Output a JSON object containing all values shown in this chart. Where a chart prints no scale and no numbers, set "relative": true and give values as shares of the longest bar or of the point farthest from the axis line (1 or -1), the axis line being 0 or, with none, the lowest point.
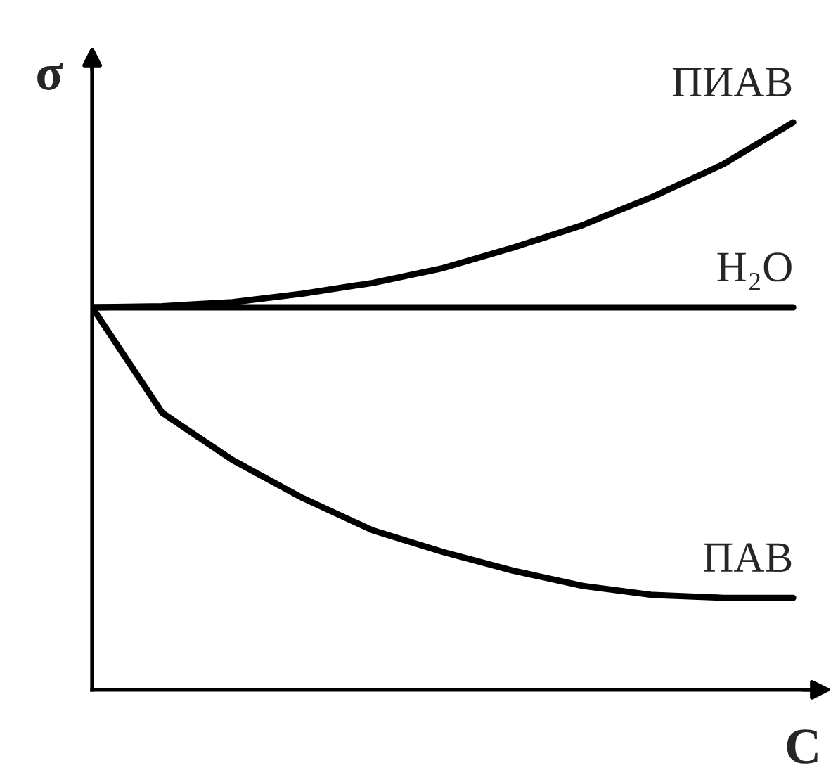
{
  "chart_data": {
    "type": "line",
    "relative": true,
    "xlabel": "C",
    "ylabel": "σ",
    "legend": false,
    "marker": "none",
    "line_style": "solid",
    "categories": [
      null,
      null,
      null,
      null,
      null,
      null,
      null,
      null,
      null,
      null,
      null
    ],
    "series": [
      {
        "name": "ПИАВ",
        "color": "#000000",
        "values": [
          0.674,
          0.676,
          0.683,
          0.698,
          0.717,
          0.743,
          0.779,
          0.819,
          0.869,
          0.926,
          1
        ]
      },
      {
        "name": "H₂O",
        "color": "#000000",
        "values": [
          0.674,
          0.674,
          0.674,
          0.674,
          0.674,
          0.674,
          0.674,
          0.674,
          0.674,
          0.674,
          0.674
        ]
      },
      {
        "name": "ПАВ",
        "color": "#000000",
        "values": [
          0.674,
          0.488,
          0.405,
          0.338,
          0.281,
          0.243,
          0.21,
          0.183,
          0.167,
          0.162,
          0.162
        ]
      }
    ]
  }
}
